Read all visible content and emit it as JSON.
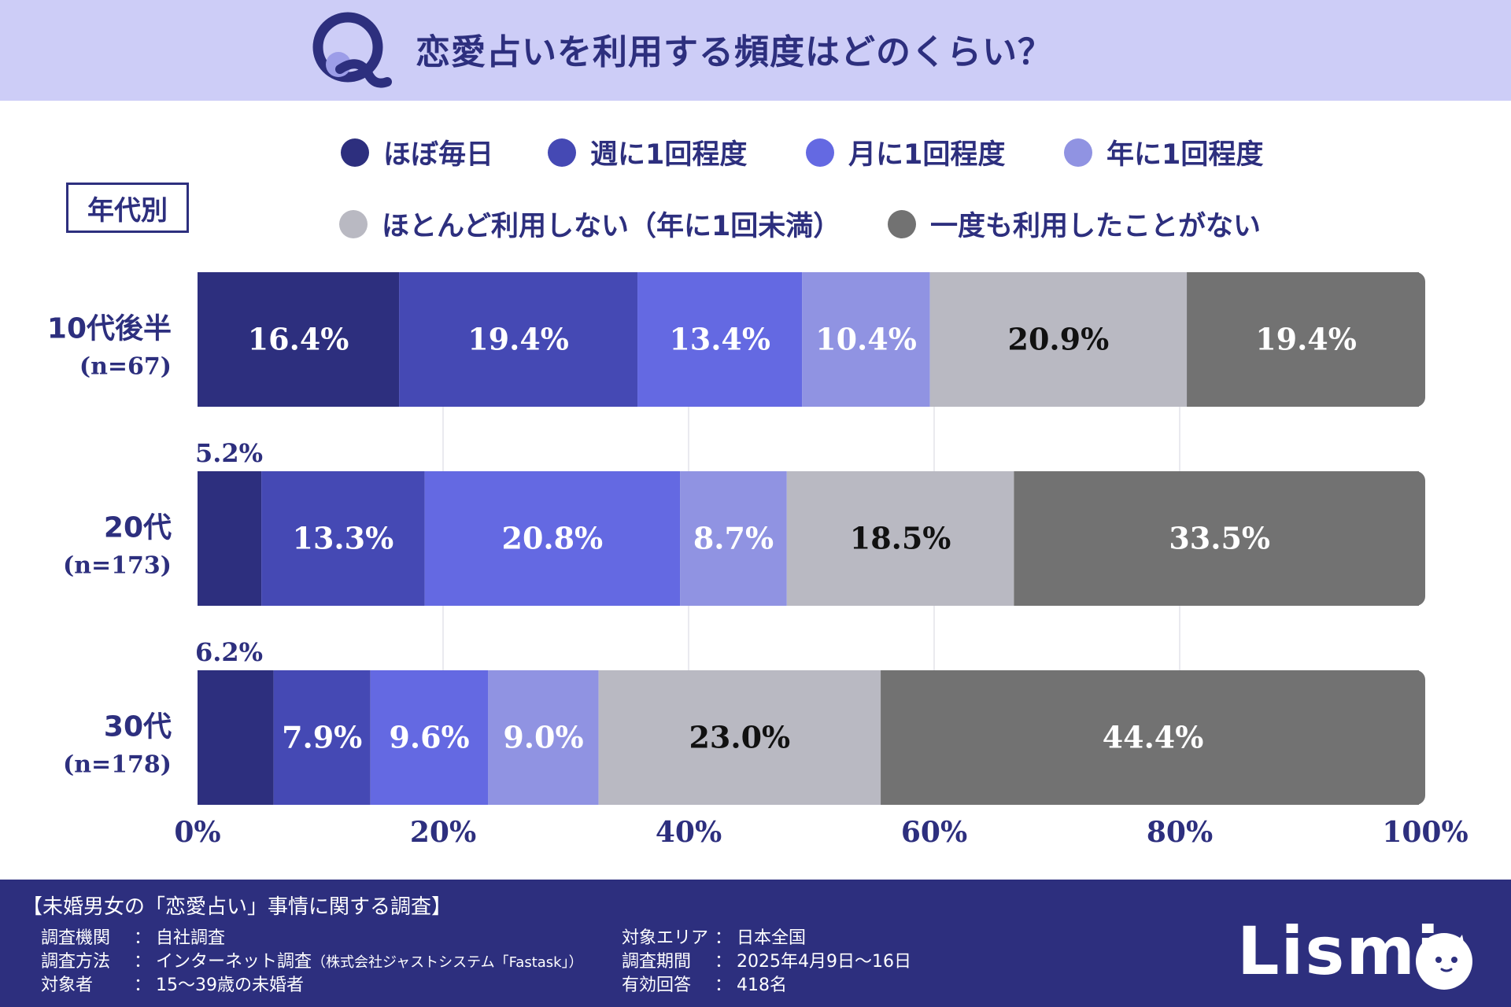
{
  "header": {
    "title": "恋愛占いを利用する頻度はどのくらい？"
  },
  "tag": "年代別",
  "legend": [
    {
      "label": "ほぼ毎日",
      "color": "#2d2f7e"
    },
    {
      "label": "週に1回程度",
      "color": "#4549b4"
    },
    {
      "label": "月に1回程度",
      "color": "#6469e2"
    },
    {
      "label": "年に1回程度",
      "color": "#9093e2"
    },
    {
      "label": "ほとんど利用しない（年に1回未満）",
      "color": "#b9b9c2"
    },
    {
      "label": "一度も利用したことがない",
      "color": "#727272"
    }
  ],
  "chart_data": {
    "type": "bar",
    "orientation": "horizontal-stacked-100",
    "categories": [
      {
        "name": "10代後半",
        "n": "(n=67)"
      },
      {
        "name": "20代",
        "n": "(n=173)"
      },
      {
        "name": "30代",
        "n": "(n=178)"
      }
    ],
    "series": [
      {
        "name": "ほぼ毎日",
        "values": [
          16.4,
          5.2,
          6.2
        ]
      },
      {
        "name": "週に1回程度",
        "values": [
          19.4,
          13.3,
          7.9
        ]
      },
      {
        "name": "月に1回程度",
        "values": [
          13.4,
          20.8,
          9.6
        ]
      },
      {
        "name": "年に1回程度",
        "values": [
          10.4,
          8.7,
          9.0
        ]
      },
      {
        "name": "ほとんど利用しない（年に1回未満）",
        "values": [
          20.9,
          18.5,
          23.0
        ]
      },
      {
        "name": "一度も利用したことがない",
        "values": [
          19.4,
          33.5,
          44.4
        ]
      }
    ],
    "value_labels": [
      [
        "16.4%",
        "19.4%",
        "13.4%",
        "10.4%",
        "20.9%",
        "19.4%"
      ],
      [
        "5.2%",
        "13.3%",
        "20.8%",
        "8.7%",
        "18.5%",
        "33.5%"
      ],
      [
        "6.2%",
        "7.9%",
        "9.6%",
        "9.0%",
        "23.0%",
        "44.4%"
      ]
    ],
    "xticks": [
      "0%",
      "20%",
      "40%",
      "60%",
      "80%",
      "100%"
    ],
    "xlim": [
      0,
      100
    ],
    "grid": true
  },
  "footer": {
    "title": "【未婚男女の「恋愛占い」事情に関する調査】",
    "left": [
      {
        "key": "調査機関",
        "sep": "：",
        "value": "自社調査",
        "note": ""
      },
      {
        "key": "調査方法",
        "sep": "：",
        "value": "インターネット調査",
        "note": "（株式会社ジャストシステム「Fastask」）"
      },
      {
        "key": "対象者",
        "sep": "：",
        "value": "15〜39歳の未婚者",
        "note": ""
      }
    ],
    "right": [
      {
        "key": "対象エリア",
        "sep": "：",
        "value": "日本全国"
      },
      {
        "key": "調査期間",
        "sep": "：",
        "value": "2025年4月9日〜16日"
      },
      {
        "key": "有効回答",
        "sep": "：",
        "value": "418名"
      }
    ],
    "brand": "Lismi"
  }
}
